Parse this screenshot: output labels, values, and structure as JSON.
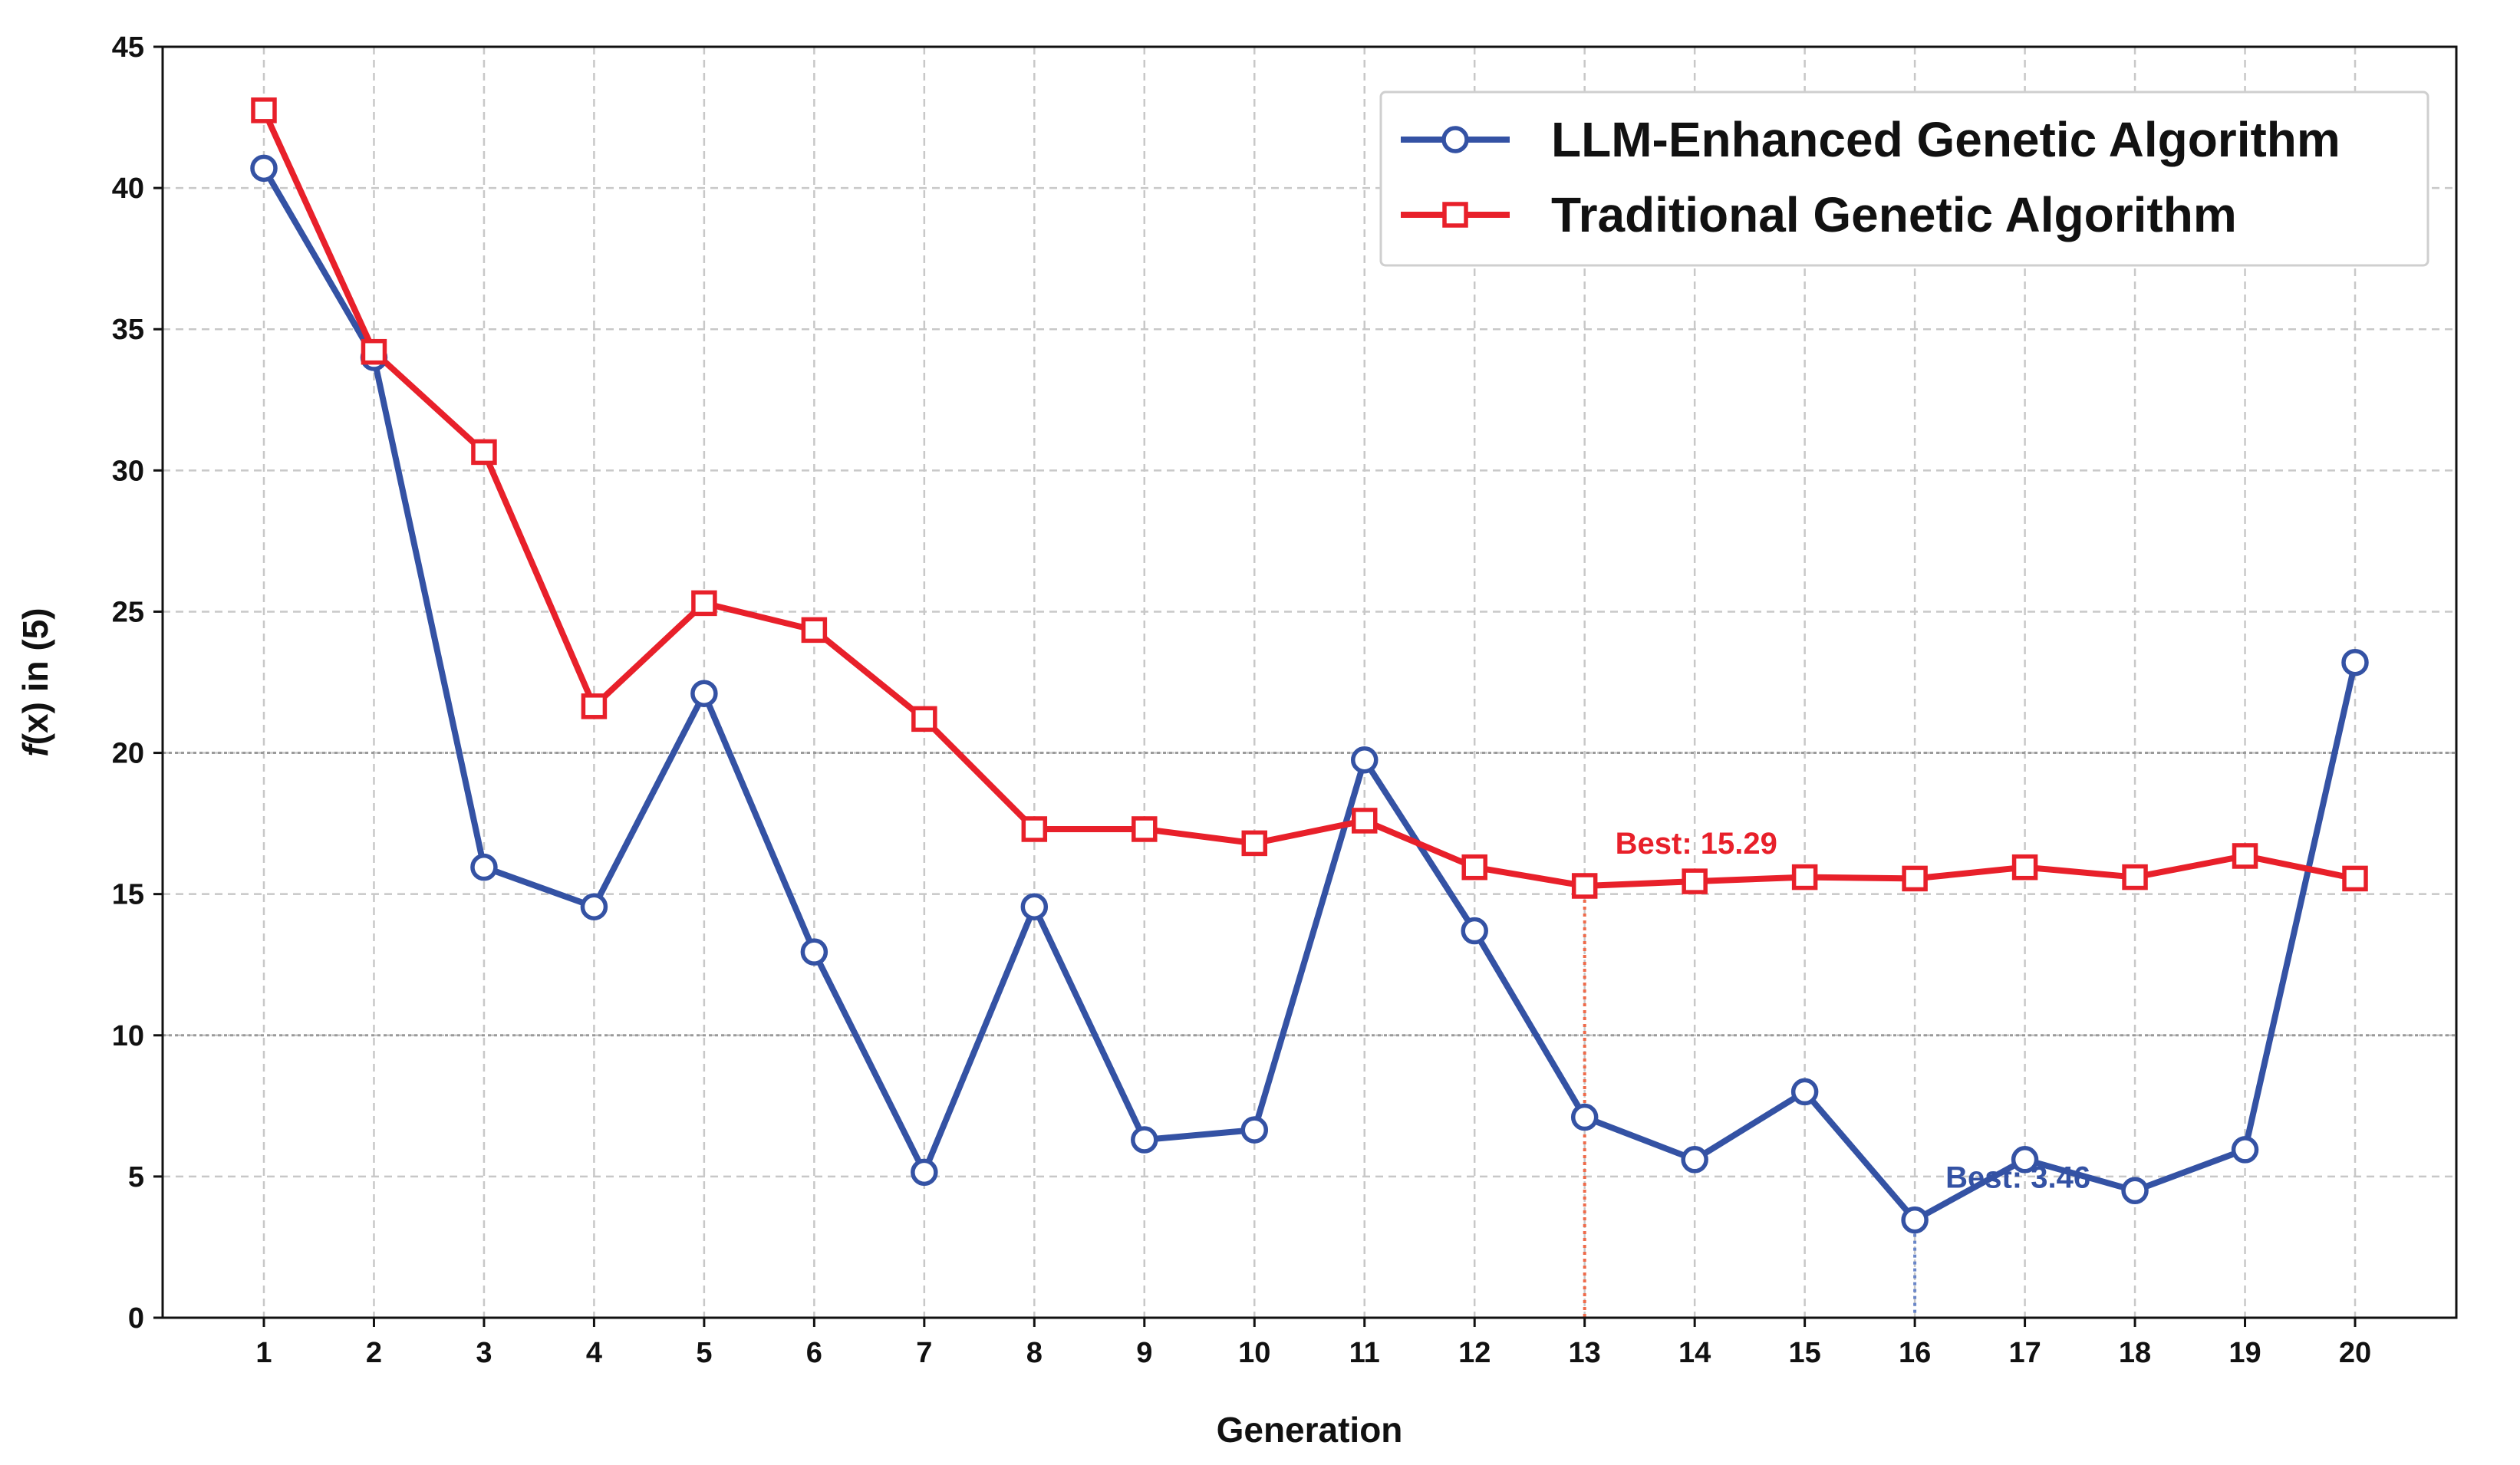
{
  "chart_data": {
    "type": "line",
    "title": "",
    "xlabel": "Generation",
    "ylabel_prefix": "f",
    "ylabel_suffix": "(x) in (5)",
    "x": [
      1,
      2,
      3,
      4,
      5,
      6,
      7,
      8,
      9,
      10,
      11,
      12,
      13,
      14,
      15,
      16,
      17,
      18,
      19,
      20
    ],
    "xlim": [
      0.08,
      20.92
    ],
    "ylim": [
      0,
      45
    ],
    "yticks": [
      0,
      5,
      10,
      15,
      20,
      25,
      30,
      35,
      40,
      45
    ],
    "grid": true,
    "reference_lines": [
      10,
      20
    ],
    "legend_position": "top-right",
    "series": [
      {
        "name": "LLM-Enhanced Genetic Algorithm",
        "color": "#3452A4",
        "marker": "circle",
        "values": [
          40.7,
          34.0,
          15.95,
          14.55,
          22.1,
          12.95,
          5.15,
          14.55,
          6.3,
          6.65,
          19.75,
          13.7,
          7.1,
          5.6,
          8.0,
          3.46,
          5.6,
          4.5,
          5.95,
          23.2
        ]
      },
      {
        "name": "Traditional Genetic Algorithm",
        "color": "#E8202A",
        "marker": "square",
        "values": [
          42.75,
          34.2,
          30.65,
          21.65,
          25.3,
          24.35,
          21.2,
          17.3,
          17.3,
          16.8,
          17.6,
          15.95,
          15.29,
          15.45,
          15.6,
          15.55,
          15.95,
          15.6,
          16.35,
          15.55
        ]
      }
    ],
    "annotations": [
      {
        "text": "Best: 15.29",
        "x": 13,
        "y": 15.29,
        "color": "#E8202A",
        "guide_color": "#EE6A4A"
      },
      {
        "text": "Best: 3.46",
        "x": 16,
        "y": 3.46,
        "color": "#3452A4",
        "guide_color": "#6A86C8"
      }
    ]
  }
}
